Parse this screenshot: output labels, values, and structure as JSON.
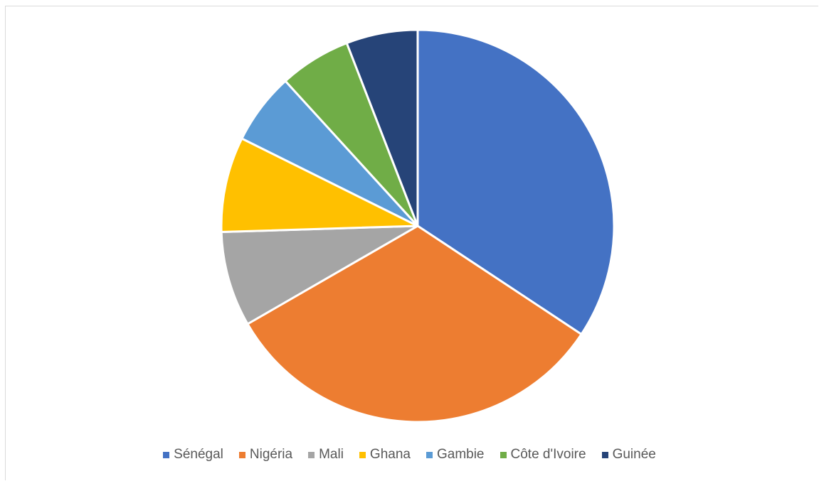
{
  "chart_data": {
    "type": "pie",
    "title": "",
    "legend_position": "bottom",
    "categories": [
      "Sénégal",
      "Nigéria",
      "Mali",
      "Ghana",
      "Gambie",
      "Côte d'Ivoire",
      "Guinée"
    ],
    "values": [
      35,
      33,
      8,
      8,
      6,
      6,
      6
    ],
    "colors": [
      "#4472C4",
      "#ED7D31",
      "#A5A5A5",
      "#FFC000",
      "#5B9BD5",
      "#70AD47",
      "#264478"
    ]
  }
}
